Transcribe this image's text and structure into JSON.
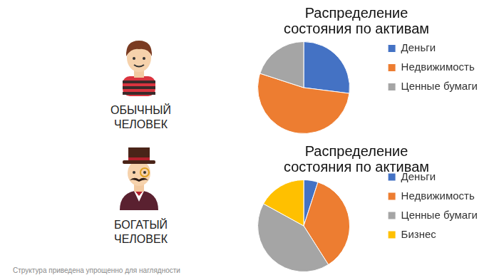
{
  "chart_data": [
    {
      "type": "pie",
      "title": [
        "Распределение",
        "состояния по активам"
      ],
      "categories": [
        "Деньги",
        "Недвижимость",
        "Ценные бумаги"
      ],
      "values": [
        27,
        53,
        20
      ],
      "colors": [
        "#4472c4",
        "#ed7d31",
        "#a5a5a5"
      ],
      "legend": "right"
    },
    {
      "type": "pie",
      "title": [
        "Распределение",
        "состояния по активам"
      ],
      "categories": [
        "Деньги",
        "Недвижимость",
        "Ценные бумаги",
        "Бизнес"
      ],
      "values": [
        5,
        36,
        42,
        17
      ],
      "colors": [
        "#4472c4",
        "#ed7d31",
        "#a5a5a5",
        "#ffc000"
      ],
      "legend": "right"
    }
  ],
  "people": [
    "ОБЫЧНЫЙ ЧЕЛОВЕК",
    "БОГАТЫЙ ЧЕЛОВЕК"
  ],
  "note": "Структура приведена упрощенно для наглядности"
}
